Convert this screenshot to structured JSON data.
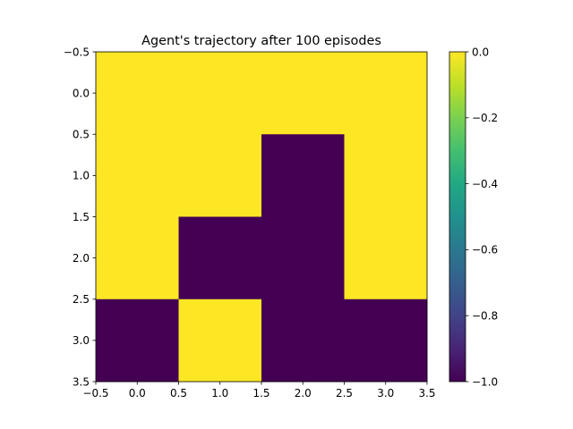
{
  "chart_data": {
    "type": "heatmap",
    "title": "Agent's trajectory after 100 episodes",
    "xlabel": "",
    "ylabel": "",
    "xlim": [
      -0.5,
      3.5
    ],
    "ylim": [
      -0.5,
      3.5
    ],
    "y_inverted": true,
    "grid": false,
    "x_ticks": [
      -0.5,
      0.0,
      0.5,
      1.0,
      1.5,
      2.0,
      2.5,
      3.0,
      3.5
    ],
    "x_tick_labels": [
      "−0.5",
      "0.0",
      "0.5",
      "1.0",
      "1.5",
      "2.0",
      "2.5",
      "3.0",
      "3.5"
    ],
    "y_ticks": [
      -0.5,
      0.0,
      0.5,
      1.0,
      1.5,
      2.0,
      2.5,
      3.0,
      3.5
    ],
    "y_tick_labels": [
      "−0.5",
      "0.0",
      "0.5",
      "1.0",
      "1.5",
      "2.0",
      "2.5",
      "3.0",
      "3.5"
    ],
    "rows": [
      [
        0,
        0,
        0,
        0
      ],
      [
        0,
        0,
        -1,
        0
      ],
      [
        0,
        -1,
        -1,
        0
      ],
      [
        -1,
        0,
        -1,
        -1
      ]
    ],
    "colormap": "viridis",
    "colors": {
      "high": "#fde725",
      "low": "#440154"
    },
    "colorbar": {
      "range": [
        -1.0,
        0.0
      ],
      "ticks": [
        0.0,
        -0.2,
        -0.4,
        -0.6,
        -0.8,
        -1.0
      ],
      "tick_labels": [
        "0.0",
        "−0.2",
        "−0.4",
        "−0.6",
        "−0.8",
        "−1.0"
      ]
    }
  }
}
